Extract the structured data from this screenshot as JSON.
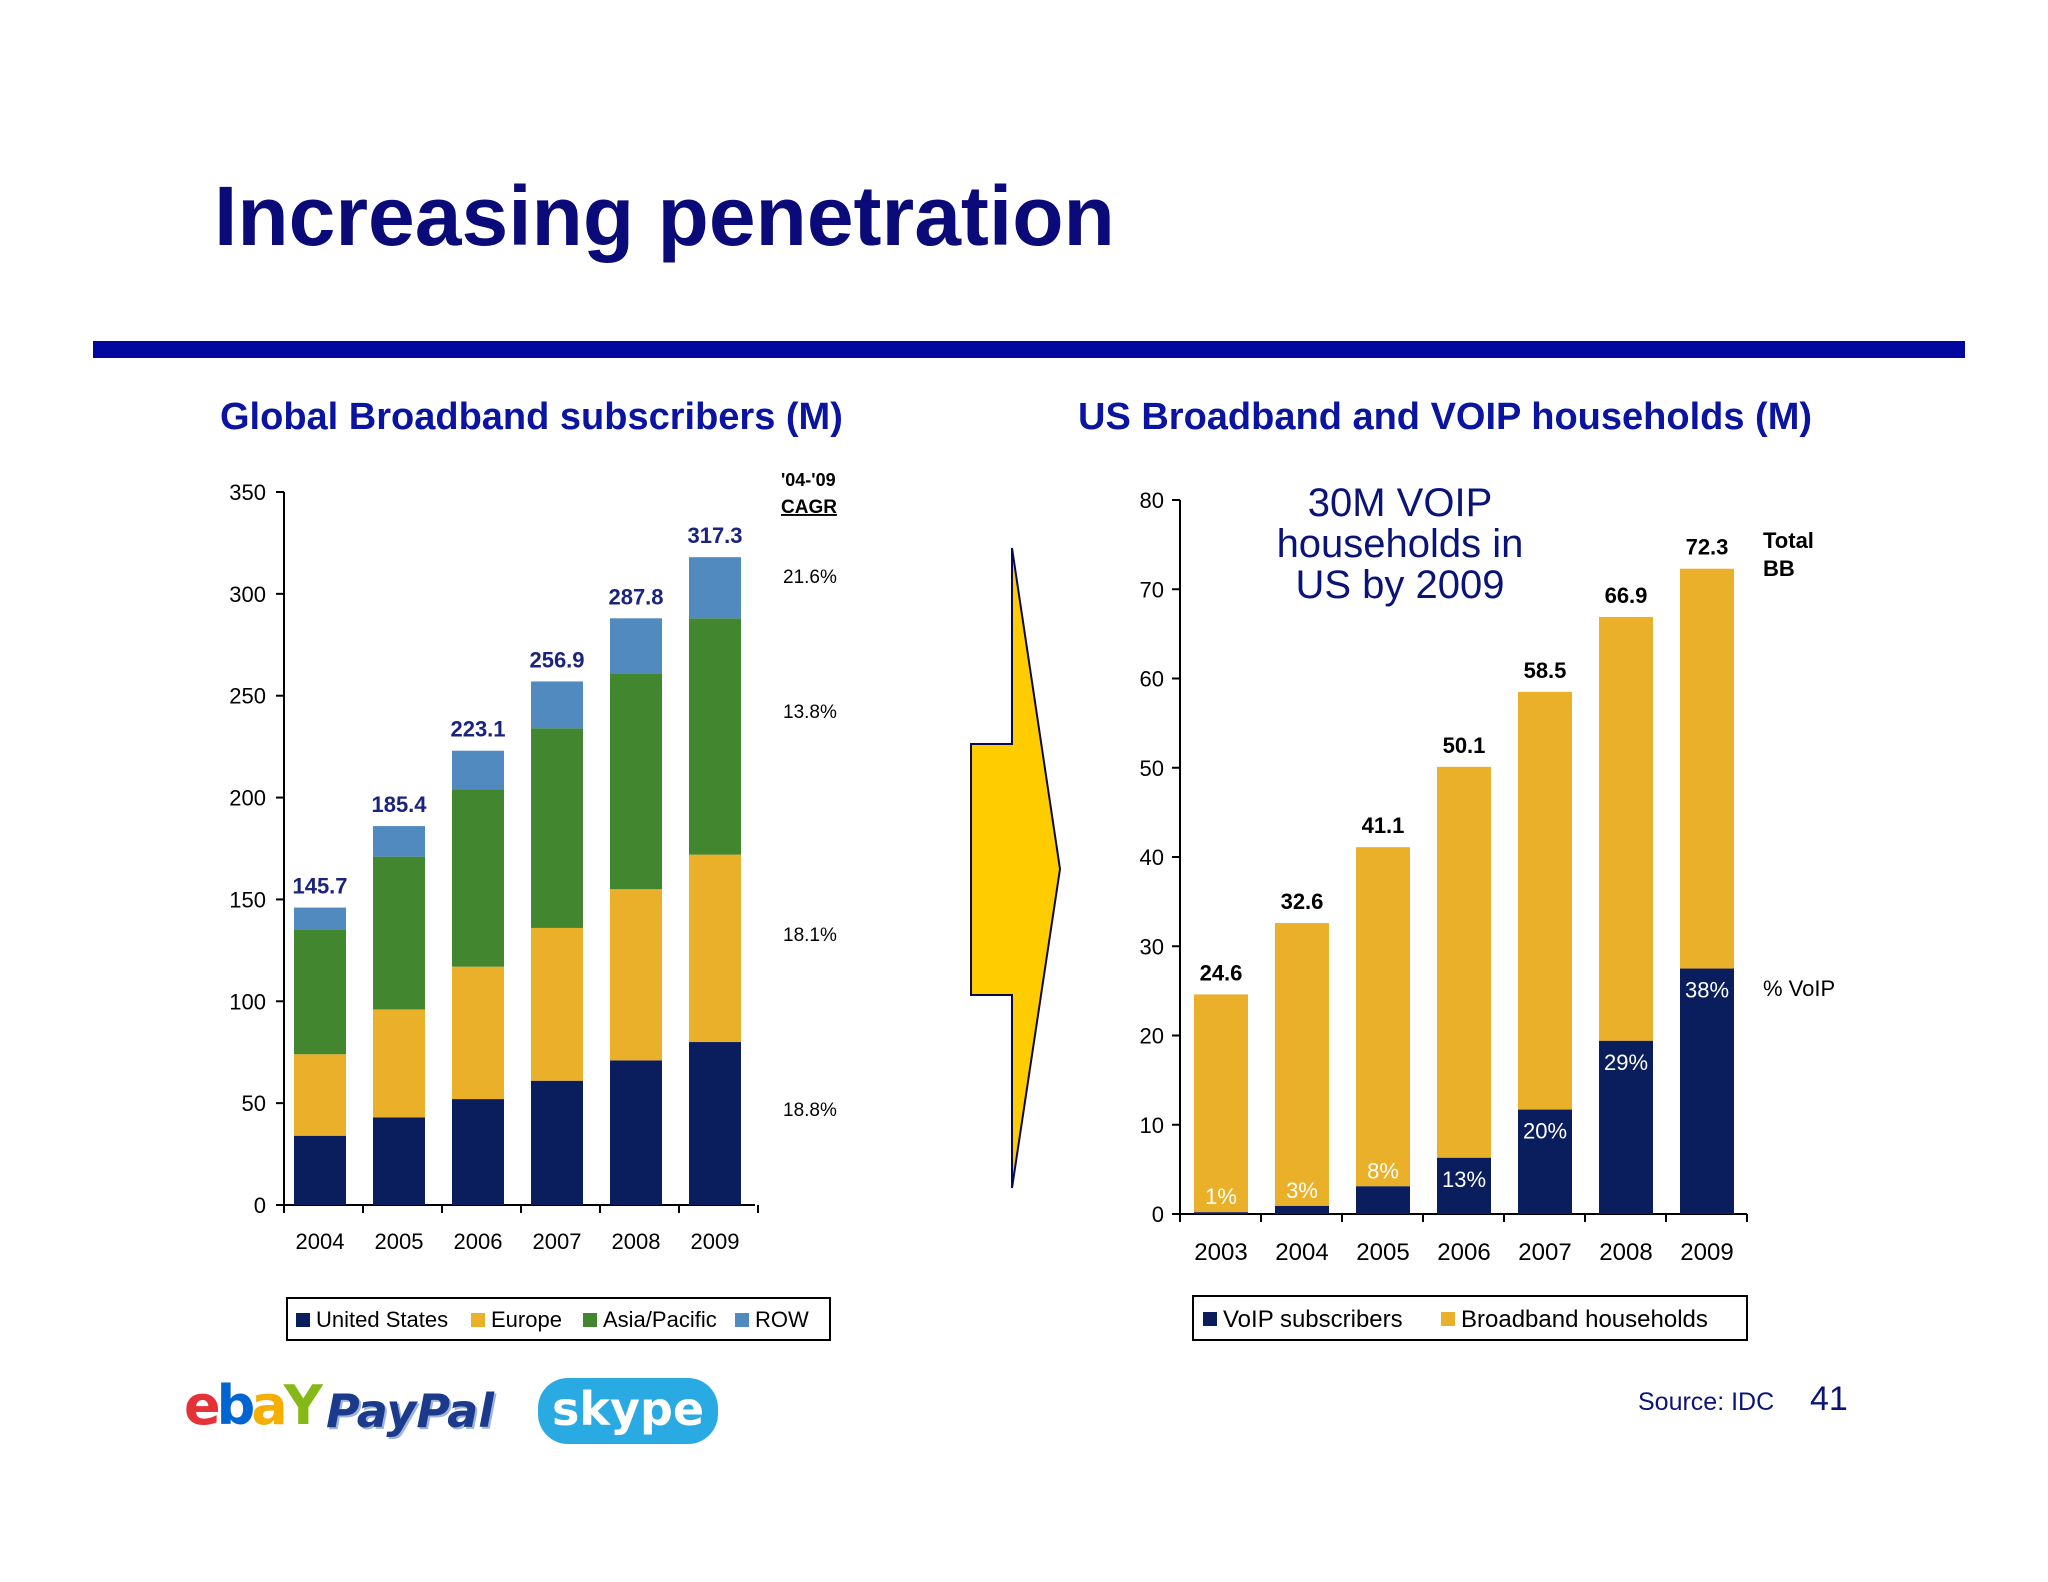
{
  "page": {
    "title": "Increasing penetration",
    "source": "Source: IDC",
    "page_number": "41",
    "logos": {
      "ebay": [
        "e",
        "b",
        "a",
        "Y"
      ],
      "paypal": "PayPal",
      "skype": "skype"
    }
  },
  "chart_data": [
    {
      "type": "bar",
      "stacked": true,
      "title": "Global Broadband subscribers (M)",
      "categories": [
        "2004",
        "2005",
        "2006",
        "2007",
        "2008",
        "2009"
      ],
      "ylim": [
        0,
        350
      ],
      "yticks": [
        "0",
        "50",
        "100",
        "150",
        "200",
        "250",
        "300",
        "350"
      ],
      "series": [
        {
          "name": "United States",
          "color": "#0a1e5e",
          "values": [
            34,
            43,
            52,
            61,
            71,
            80
          ]
        },
        {
          "name": "Europe",
          "color": "#ebb02a",
          "values": [
            40,
            53,
            65,
            75,
            84,
            92
          ]
        },
        {
          "name": "Asia/Pacific",
          "color": "#428630",
          "values": [
            61,
            75,
            87,
            98,
            106,
            116
          ]
        },
        {
          "name": "ROW",
          "color": "#508abe",
          "values": [
            11,
            15,
            19,
            23,
            27,
            30
          ]
        }
      ],
      "totals": [
        "145.7",
        "185.4",
        "223.1",
        "256.9",
        "287.8",
        "317.3"
      ],
      "cagr_header": [
        "'04-'09",
        "CAGR"
      ],
      "cagr": [
        {
          "series": "ROW",
          "label": "21.6%"
        },
        {
          "series": "Asia/Pacific",
          "label": "13.8%"
        },
        {
          "series": "Europe",
          "label": "18.1%"
        },
        {
          "series": "United States",
          "label": "18.8%"
        }
      ],
      "legend": "bottom"
    },
    {
      "type": "bar",
      "stacked": true,
      "title": "US Broadband and VOIP households (M)",
      "categories": [
        "2003",
        "2004",
        "2005",
        "2006",
        "2007",
        "2008",
        "2009"
      ],
      "ylim": [
        0,
        80
      ],
      "yticks": [
        "0",
        "10",
        "20",
        "30",
        "40",
        "50",
        "60",
        "70",
        "80"
      ],
      "totals_values": [
        24.6,
        32.6,
        41.1,
        50.1,
        58.5,
        66.9,
        72.3
      ],
      "totals": [
        "24.6",
        "32.6",
        "41.1",
        "50.1",
        "58.5",
        "66.9",
        "72.3"
      ],
      "voip_values": [
        0.2,
        0.9,
        3.1,
        6.3,
        11.7,
        19.4,
        27.5
      ],
      "voip_pct": [
        "1%",
        "3%",
        "8%",
        "13%",
        "20%",
        "29%",
        "38%"
      ],
      "series": [
        {
          "name": "VoIP subscribers",
          "color": "#0a1e5e"
        },
        {
          "name": "Broadband households",
          "color": "#ebb02a"
        }
      ],
      "annotation": [
        "30M VOIP",
        "households in",
        "US by 2009"
      ],
      "side_labels": {
        "total": [
          "Total",
          "BB"
        ],
        "voip": "% VoIP"
      },
      "legend": "bottom"
    }
  ],
  "arrow": {
    "fill": "#ffcc00"
  }
}
